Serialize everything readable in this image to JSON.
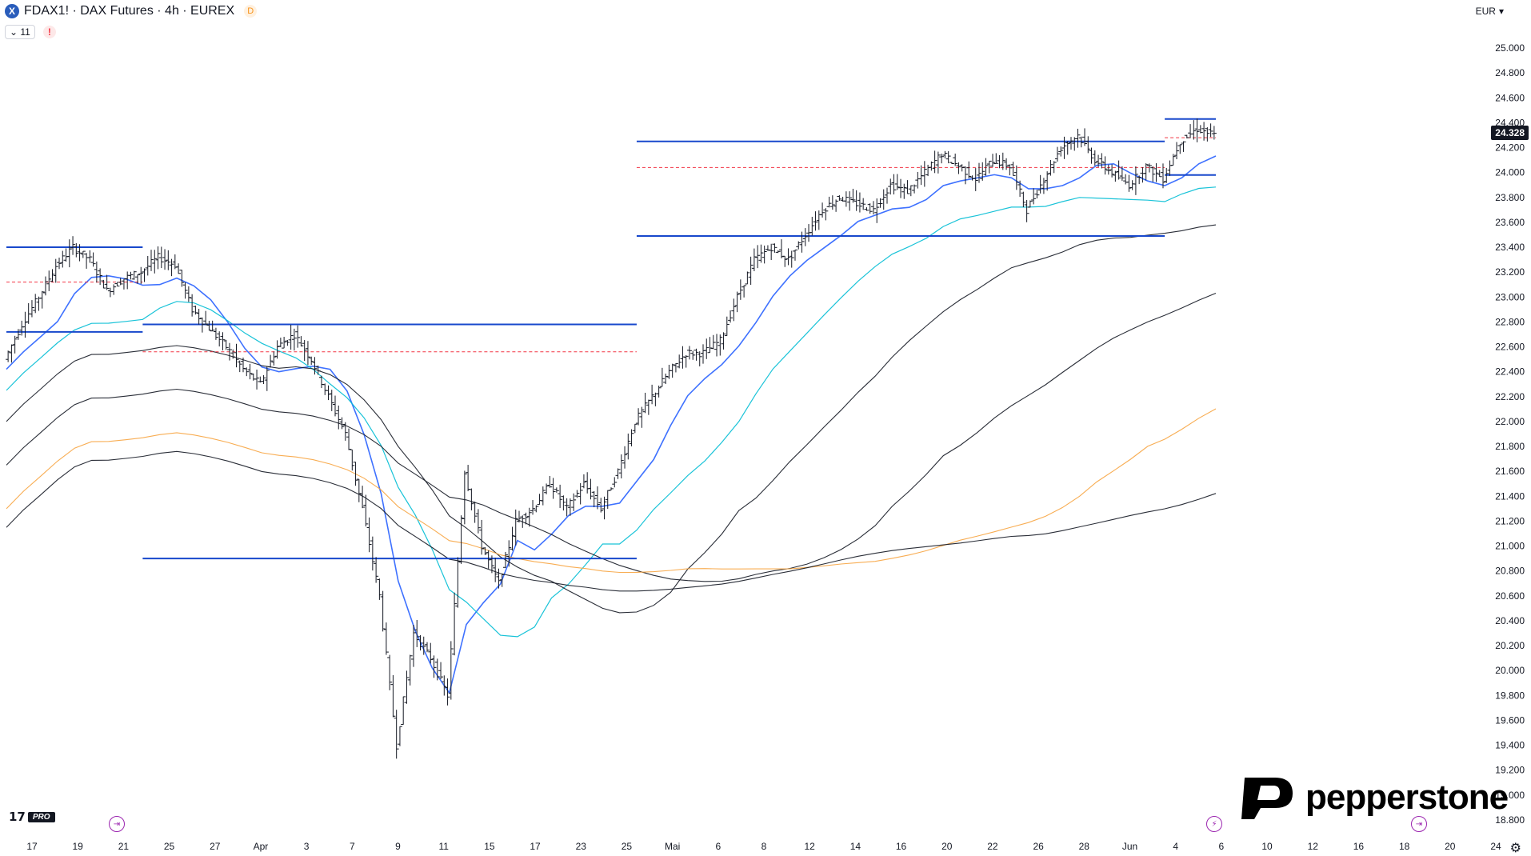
{
  "header": {
    "symbol_badge": "X",
    "title": "FDAX1! · DAX Futures · 4h · EUREX",
    "data_badge": "D",
    "indicators_count": "11",
    "warning": "!"
  },
  "axis": {
    "currency": "EUR",
    "last_price": "24.328",
    "price_labels": [
      "25.000",
      "24.800",
      "24.600",
      "24.400",
      "24.200",
      "24.000",
      "23.800",
      "23.600",
      "23.400",
      "23.200",
      "23.000",
      "22.800",
      "22.600",
      "22.400",
      "22.200",
      "22.000",
      "21.800",
      "21.600",
      "21.400",
      "21.200",
      "21.000",
      "20.800",
      "20.600",
      "20.400",
      "20.200",
      "20.000",
      "19.800",
      "19.600",
      "19.400",
      "19.200",
      "19.000",
      "18.800"
    ],
    "time_labels": [
      "17",
      "19",
      "21",
      "25",
      "27",
      "Apr",
      "3",
      "7",
      "9",
      "11",
      "15",
      "17",
      "23",
      "25",
      "Mai",
      "6",
      "8",
      "12",
      "14",
      "16",
      "20",
      "22",
      "26",
      "28",
      "Jun",
      "4",
      "6",
      "10",
      "12",
      "16",
      "18",
      "20",
      "24"
    ]
  },
  "branding": {
    "tv_mark": "17",
    "tv_pro": "PRO",
    "broker": "pepperstone"
  },
  "colors": {
    "price_bar": "#131722",
    "level_line": "#1848cc",
    "dashed_level": "#f23645",
    "ma_blue": "#2962ff",
    "ma_cyan": "#00bcd4",
    "ma_black": "#131722",
    "ma_orange": "#f7a440"
  },
  "chart_data": {
    "type": "ohlc",
    "symbol": "FDAX1!",
    "timeframe": "4h",
    "ylim": [
      18800,
      25000
    ],
    "price_path": [
      [
        0,
        22500
      ],
      [
        1,
        22780
      ],
      [
        2,
        23000
      ],
      [
        3,
        23250
      ],
      [
        4,
        23400
      ],
      [
        5,
        23300
      ],
      [
        6,
        23050
      ],
      [
        7,
        23150
      ],
      [
        8,
        23200
      ],
      [
        9,
        23320
      ],
      [
        10,
        23260
      ],
      [
        11,
        22900
      ],
      [
        12,
        22750
      ],
      [
        13,
        22600
      ],
      [
        14,
        22420
      ],
      [
        15,
        22300
      ],
      [
        16,
        22600
      ],
      [
        17,
        22700
      ],
      [
        18,
        22500
      ],
      [
        19,
        22200
      ],
      [
        20,
        21900
      ],
      [
        21,
        21300
      ],
      [
        22,
        20600
      ],
      [
        23,
        19400
      ],
      [
        24,
        20300
      ],
      [
        25,
        20100
      ],
      [
        26,
        19800
      ],
      [
        27,
        21600
      ],
      [
        28,
        21000
      ],
      [
        29,
        20700
      ],
      [
        30,
        21200
      ],
      [
        31,
        21300
      ],
      [
        32,
        21500
      ],
      [
        33,
        21300
      ],
      [
        34,
        21500
      ],
      [
        35,
        21300
      ],
      [
        36,
        21600
      ],
      [
        37,
        22000
      ],
      [
        38,
        22200
      ],
      [
        39,
        22400
      ],
      [
        40,
        22550
      ],
      [
        41,
        22550
      ],
      [
        42,
        22650
      ],
      [
        43,
        23000
      ],
      [
        44,
        23300
      ],
      [
        45,
        23400
      ],
      [
        46,
        23300
      ],
      [
        47,
        23500
      ],
      [
        48,
        23700
      ],
      [
        49,
        23800
      ],
      [
        50,
        23750
      ],
      [
        51,
        23700
      ],
      [
        52,
        23900
      ],
      [
        53,
        23850
      ],
      [
        54,
        24000
      ],
      [
        55,
        24150
      ],
      [
        56,
        24050
      ],
      [
        57,
        23950
      ],
      [
        58,
        24100
      ],
      [
        59,
        24050
      ],
      [
        60,
        23700
      ],
      [
        61,
        23950
      ],
      [
        62,
        24200
      ],
      [
        63,
        24300
      ],
      [
        64,
        24100
      ],
      [
        65,
        24000
      ],
      [
        66,
        23900
      ],
      [
        67,
        24050
      ],
      [
        68,
        23950
      ],
      [
        69,
        24250
      ],
      [
        70,
        24350
      ],
      [
        71,
        24300
      ]
    ],
    "levels": [
      {
        "price": 23400,
        "from_index": 0,
        "to_index": 8
      },
      {
        "price": 22720,
        "from_index": 0,
        "to_index": 8
      },
      {
        "price": 22780,
        "from_index": 8,
        "to_index": 37
      },
      {
        "price": 20900,
        "from_index": 8,
        "to_index": 37
      },
      {
        "price": 24250,
        "from_index": 37,
        "to_index": 68
      },
      {
        "price": 23490,
        "from_index": 37,
        "to_index": 68
      },
      {
        "price": 24430,
        "from_index": 68,
        "to_index": 71
      },
      {
        "price": 23980,
        "from_index": 68,
        "to_index": 71
      }
    ],
    "dashed_levels": [
      {
        "price": 23120,
        "from_index": 0,
        "to_index": 8
      },
      {
        "price": 22560,
        "from_index": 8,
        "to_index": 37
      },
      {
        "price": 24040,
        "from_index": 37,
        "to_index": 68
      },
      {
        "price": 24280,
        "from_index": 68,
        "to_index": 71
      }
    ]
  }
}
